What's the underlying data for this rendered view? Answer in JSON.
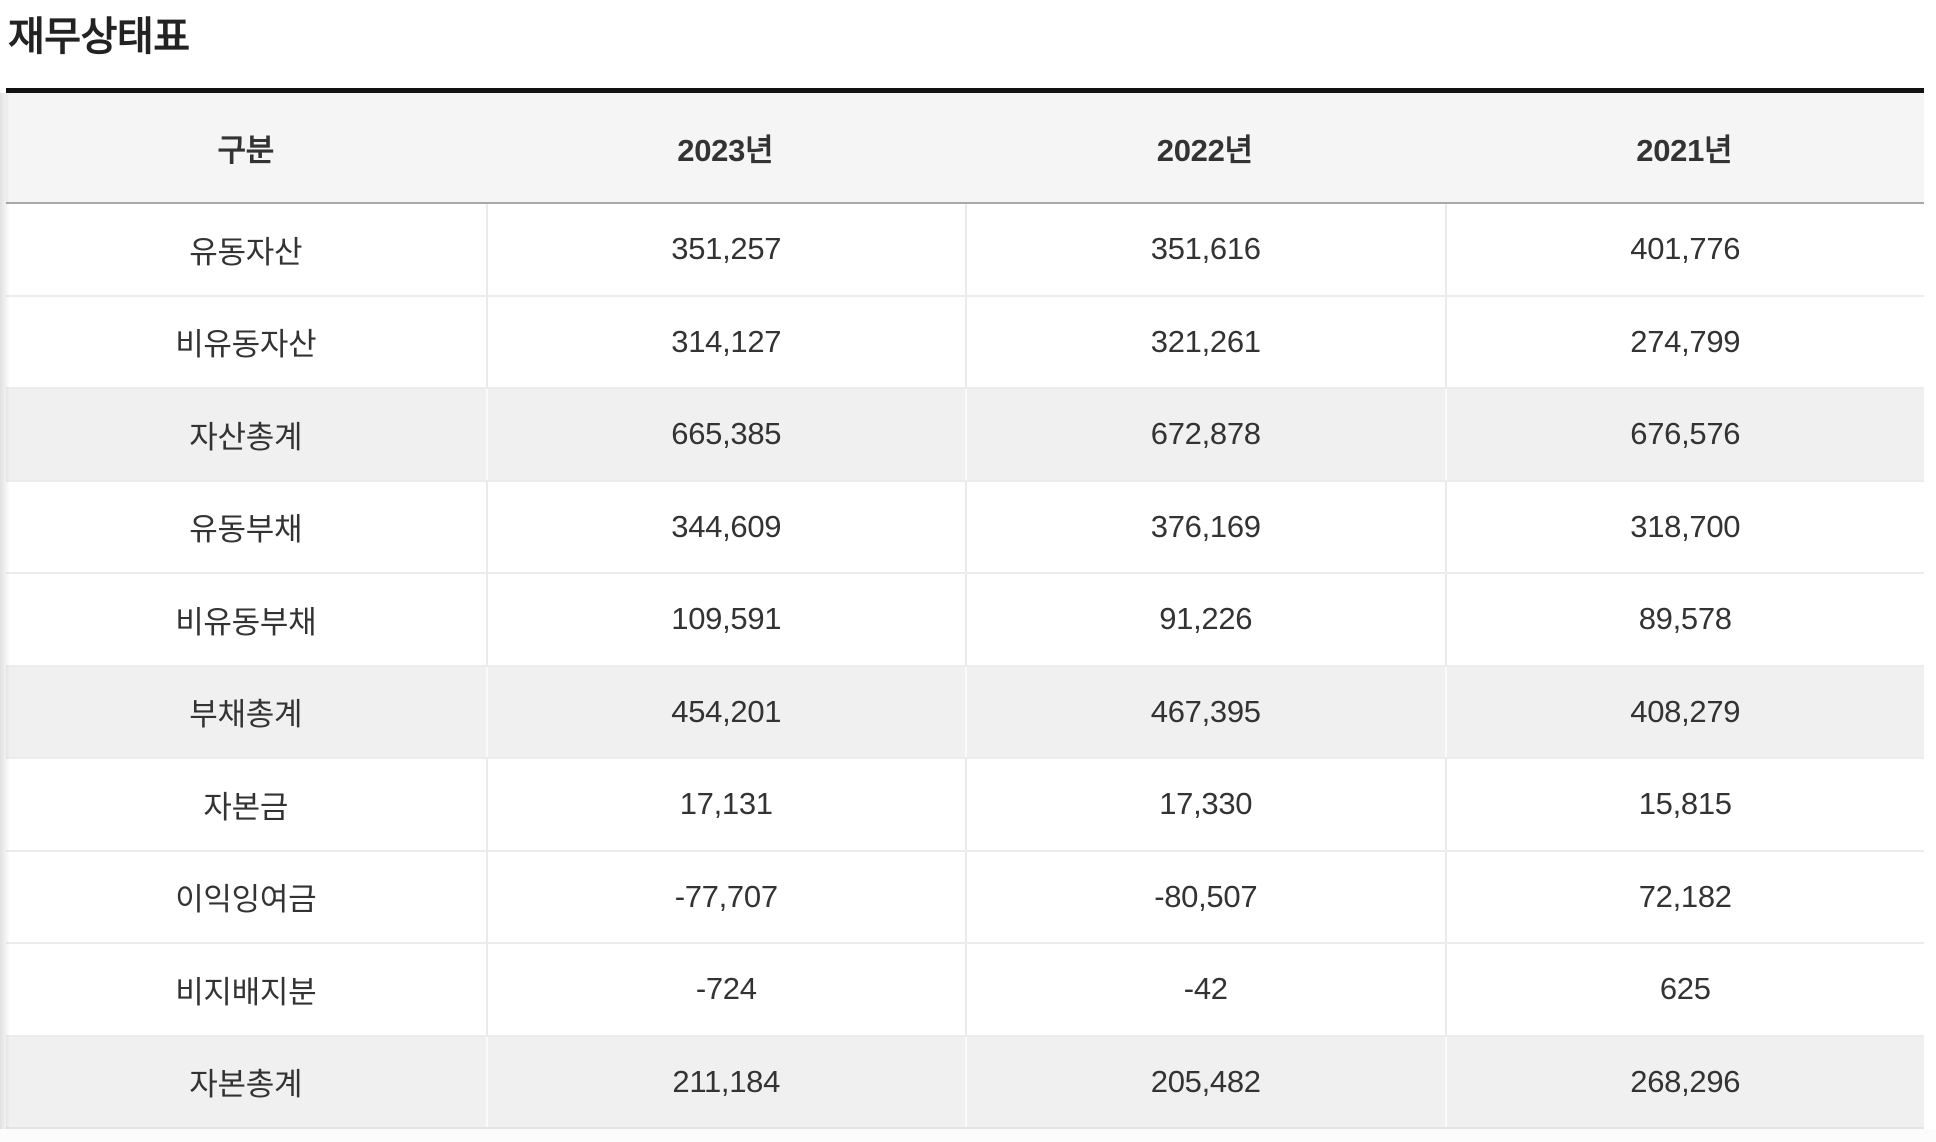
{
  "page": {
    "title": "재무상태표"
  },
  "table": {
    "columns": [
      "구분",
      "2023년",
      "2022년",
      "2021년"
    ],
    "rows": [
      {
        "label": "유동자산",
        "values": [
          "351,257",
          "351,616",
          "401,776"
        ],
        "total": false
      },
      {
        "label": "비유동자산",
        "values": [
          "314,127",
          "321,261",
          "274,799"
        ],
        "total": false
      },
      {
        "label": "자산총계",
        "values": [
          "665,385",
          "672,878",
          "676,576"
        ],
        "total": true
      },
      {
        "label": "유동부채",
        "values": [
          "344,609",
          "376,169",
          "318,700"
        ],
        "total": false
      },
      {
        "label": "비유동부채",
        "values": [
          "109,591",
          "91,226",
          "89,578"
        ],
        "total": false
      },
      {
        "label": "부채총계",
        "values": [
          "454,201",
          "467,395",
          "408,279"
        ],
        "total": true
      },
      {
        "label": "자본금",
        "values": [
          "17,131",
          "17,330",
          "15,815"
        ],
        "total": false
      },
      {
        "label": "이익잉여금",
        "values": [
          "-77,707",
          "-80,507",
          "72,182"
        ],
        "total": false
      },
      {
        "label": "비지배지분",
        "values": [
          "-724",
          "-42",
          "625"
        ],
        "total": false
      },
      {
        "label": "자본총계",
        "values": [
          "211,184",
          "205,482",
          "268,296"
        ],
        "total": true
      }
    ]
  },
  "colors": {
    "header_bg": "#f5f5f6",
    "total_row_bg": "#f0f0f1",
    "text": "#333333",
    "title_text": "#222222",
    "top_border": "#121212",
    "row_border": "#ececec",
    "header_border": "#a9a9a9"
  }
}
